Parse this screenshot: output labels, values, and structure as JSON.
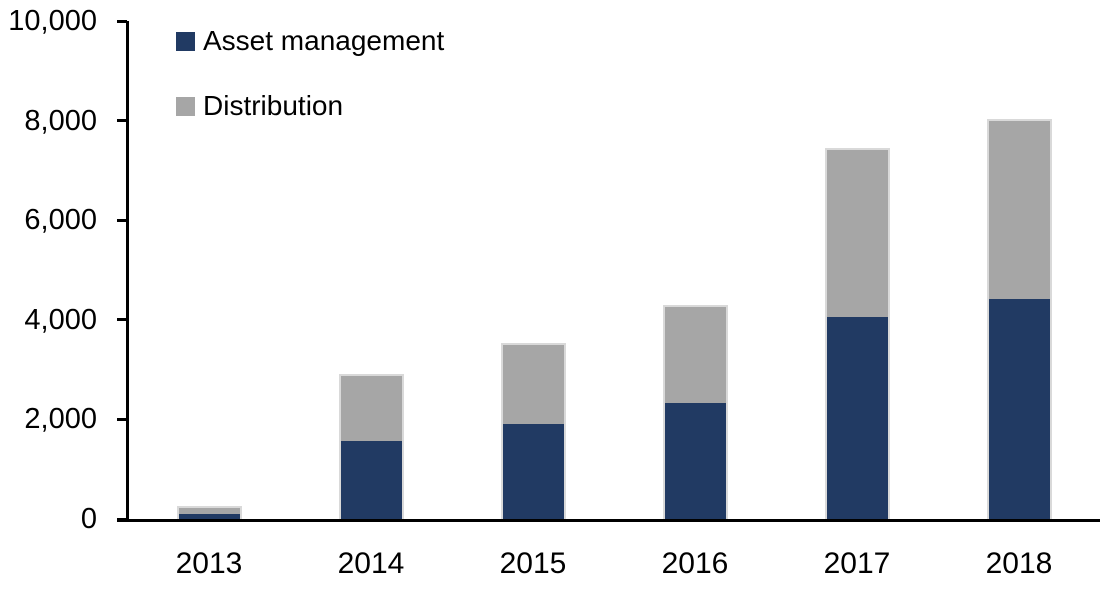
{
  "chart_data": {
    "type": "bar",
    "stacked": true,
    "title": "",
    "xlabel": "",
    "ylabel": "",
    "categories": [
      "2013",
      "2014",
      "2015",
      "2016",
      "2017",
      "2018"
    ],
    "series": [
      {
        "name": "Asset management",
        "color": "#213A63",
        "values": [
          100,
          1575,
          1900,
          2325,
          4050,
          4425
        ]
      },
      {
        "name": "Distribution",
        "color": "#A6A6A6",
        "values": [
          125,
          1300,
          1600,
          1925,
          3350,
          3575
        ]
      }
    ],
    "totals": [
      225,
      2875,
      3500,
      4250,
      7400,
      8000
    ],
    "ylim": [
      0,
      10000
    ],
    "ytick_interval": 2000,
    "ytick_labels": [
      "0",
      "2,000",
      "4,000",
      "6,000",
      "8,000",
      "10,000"
    ],
    "grid": false,
    "legend_position": "top-left",
    "axis_color": "#000000",
    "background_color": "#FFFFFF",
    "bar_border_color": "#D9D9D9"
  },
  "legend": {
    "items": [
      {
        "label": "Asset management",
        "color": "#213A63"
      },
      {
        "label": "Distribution",
        "color": "#A6A6A6"
      }
    ]
  }
}
